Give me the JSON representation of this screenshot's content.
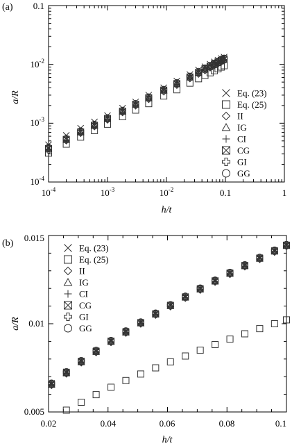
{
  "chart_data": [
    {
      "type": "scatter",
      "panel_label": "(a)",
      "xlabel": "h/t",
      "ylabel": "a/R",
      "xscale": "log",
      "yscale": "log",
      "xlim": [
        0.0001,
        1
      ],
      "ylim": [
        0.0001,
        0.1
      ],
      "x_ticks": [
        "10",
        "10",
        "10",
        "0.1",
        "1"
      ],
      "x_tick_exps": [
        "-4",
        "-3",
        "-2",
        "",
        ""
      ],
      "y_ticks": [
        "10",
        "10",
        "10",
        "0.1"
      ],
      "y_tick_exps": [
        "-4",
        "-3",
        "-2",
        ""
      ],
      "legend_position": "lower-right",
      "series": [
        {
          "name": "Eq. (23)",
          "marker": "x",
          "x": [
            0.0001,
            0.0002,
            0.00035,
            0.0006,
            0.001,
            0.0018,
            0.003,
            0.005,
            0.009,
            0.015,
            0.025,
            0.035,
            0.045,
            0.055,
            0.065,
            0.075,
            0.085,
            0.095
          ],
          "y": [
            0.00043,
            0.00062,
            0.00082,
            0.00105,
            0.00135,
            0.0018,
            0.0023,
            0.003,
            0.004,
            0.0052,
            0.0067,
            0.008,
            0.0091,
            0.0101,
            0.011,
            0.0118,
            0.0126,
            0.0133
          ]
        },
        {
          "name": "Eq. (25)",
          "marker": "square",
          "x": [
            0.0001,
            0.0002,
            0.00035,
            0.0006,
            0.001,
            0.0018,
            0.003,
            0.005,
            0.009,
            0.015,
            0.025,
            0.035,
            0.045,
            0.055,
            0.065,
            0.075,
            0.085,
            0.095
          ],
          "y": [
            0.00031,
            0.00044,
            0.00058,
            0.00075,
            0.00096,
            0.00129,
            0.00167,
            0.00215,
            0.0029,
            0.0037,
            0.0048,
            0.0057,
            0.0065,
            0.0072,
            0.0078,
            0.0084,
            0.009,
            0.0095
          ]
        },
        {
          "name": "II",
          "marker": "diamond",
          "x": [
            0.0001,
            0.0002,
            0.00035,
            0.0006,
            0.001,
            0.0018,
            0.003,
            0.005,
            0.009,
            0.015,
            0.025,
            0.035,
            0.045,
            0.055,
            0.065,
            0.075,
            0.085,
            0.095
          ],
          "y": [
            0.00034,
            0.0005,
            0.00067,
            0.00087,
            0.00113,
            0.00151,
            0.00196,
            0.00253,
            0.0034,
            0.0044,
            0.0057,
            0.0068,
            0.0078,
            0.0087,
            0.0095,
            0.0102,
            0.0109,
            0.0115
          ]
        },
        {
          "name": "IG",
          "marker": "triangle",
          "x": [
            0.0001,
            0.0002,
            0.00035,
            0.0006,
            0.001,
            0.0018,
            0.003,
            0.005,
            0.009,
            0.015,
            0.025,
            0.035,
            0.045,
            0.055,
            0.065,
            0.075,
            0.085,
            0.095
          ],
          "y": [
            0.00036,
            0.00052,
            0.0007,
            0.00091,
            0.00118,
            0.00158,
            0.00205,
            0.00266,
            0.00358,
            0.0046,
            0.006,
            0.0072,
            0.0082,
            0.0091,
            0.01,
            0.0107,
            0.0115,
            0.0122
          ]
        },
        {
          "name": "CI",
          "marker": "plus",
          "x": [
            0.0001,
            0.0002,
            0.00035,
            0.0006,
            0.001,
            0.0018,
            0.003,
            0.005,
            0.009,
            0.015,
            0.025,
            0.035,
            0.045,
            0.055,
            0.065,
            0.075,
            0.085,
            0.095
          ],
          "y": [
            0.00035,
            0.00051,
            0.00068,
            0.00089,
            0.00115,
            0.00154,
            0.002,
            0.0026,
            0.0035,
            0.0045,
            0.0058,
            0.007,
            0.008,
            0.0089,
            0.0097,
            0.0105,
            0.0112,
            0.0118
          ]
        },
        {
          "name": "CG",
          "marker": "boxed-x",
          "x": [
            0.0001,
            0.0002,
            0.00035,
            0.0006,
            0.001,
            0.0018,
            0.003,
            0.005,
            0.009,
            0.015,
            0.025,
            0.035,
            0.045,
            0.055,
            0.065,
            0.075,
            0.085,
            0.095
          ],
          "y": [
            0.00037,
            0.00053,
            0.00071,
            0.00092,
            0.0012,
            0.0016,
            0.0021,
            0.0027,
            0.00365,
            0.0047,
            0.0061,
            0.0073,
            0.0084,
            0.0093,
            0.0102,
            0.011,
            0.0117,
            0.0124
          ]
        },
        {
          "name": "GI",
          "marker": "thick-plus",
          "x": [
            0.0001,
            0.0002,
            0.00035,
            0.0006,
            0.001,
            0.0018,
            0.003,
            0.005,
            0.009,
            0.015,
            0.025,
            0.035,
            0.045,
            0.055,
            0.065,
            0.075,
            0.085,
            0.095
          ],
          "y": [
            0.00038,
            0.00054,
            0.00072,
            0.00094,
            0.00122,
            0.00163,
            0.00212,
            0.00274,
            0.0037,
            0.0048,
            0.0062,
            0.0074,
            0.0085,
            0.0094,
            0.0103,
            0.0111,
            0.0119,
            0.0126
          ]
        },
        {
          "name": "GG",
          "marker": "circle",
          "x": [
            0.0001,
            0.0002,
            0.00035,
            0.0006,
            0.001,
            0.0018,
            0.003,
            0.005,
            0.009,
            0.015,
            0.025,
            0.035,
            0.045,
            0.055,
            0.065,
            0.075,
            0.085,
            0.095
          ],
          "y": [
            0.00039,
            0.00055,
            0.00074,
            0.00096,
            0.00124,
            0.00166,
            0.00216,
            0.0028,
            0.00376,
            0.0049,
            0.0063,
            0.0076,
            0.0087,
            0.0096,
            0.0105,
            0.0113,
            0.0121,
            0.0128
          ]
        }
      ]
    },
    {
      "type": "scatter",
      "panel_label": "(b)",
      "xlabel": "h/t",
      "ylabel": "a/R",
      "xscale": "linear",
      "yscale": "linear",
      "xlim": [
        0.02,
        0.1
      ],
      "ylim": [
        0.005,
        0.015
      ],
      "x_ticks": [
        "0.02",
        "0.04",
        "0.06",
        "0.08",
        "0.1"
      ],
      "y_ticks": [
        "0.005",
        "0.01",
        "0.015"
      ],
      "legend_position": "top-left",
      "series": [
        {
          "name": "Eq. (23)",
          "marker": "x",
          "x": [
            0.021,
            0.026,
            0.031,
            0.036,
            0.041,
            0.046,
            0.051,
            0.056,
            0.061,
            0.066,
            0.071,
            0.076,
            0.081,
            0.086,
            0.091,
            0.096,
            0.1
          ],
          "y": [
            0.00662,
            0.00727,
            0.00789,
            0.00847,
            0.00903,
            0.00957,
            0.01008,
            0.01058,
            0.01106,
            0.01154,
            0.012,
            0.01245,
            0.01289,
            0.01332,
            0.01374,
            0.01415,
            0.01447
          ]
        },
        {
          "name": "Eq. (25)",
          "marker": "square",
          "x": [
            0.021,
            0.026,
            0.031,
            0.036,
            0.041,
            0.046,
            0.051,
            0.056,
            0.061,
            0.066,
            0.071,
            0.076,
            0.081,
            0.086,
            0.091,
            0.096,
            0.1
          ],
          "y": [
            0.0047,
            0.0051,
            0.00555,
            0.00598,
            0.0064,
            0.00678,
            0.00715,
            0.0075,
            0.00784,
            0.00817,
            0.0085,
            0.00882,
            0.00913,
            0.00943,
            0.00972,
            0.01,
            0.01022
          ]
        },
        {
          "name": "II",
          "marker": "diamond",
          "x": [
            0.021,
            0.026,
            0.031,
            0.036,
            0.041,
            0.046,
            0.051,
            0.056,
            0.061,
            0.066,
            0.071,
            0.076,
            0.081,
            0.086,
            0.091,
            0.096,
            0.1
          ],
          "y": [
            0.0065,
            0.00715,
            0.00778,
            0.00836,
            0.00893,
            0.00946,
            0.00998,
            0.01048,
            0.01096,
            0.01144,
            0.0119,
            0.01235,
            0.01279,
            0.01322,
            0.01364,
            0.01405,
            0.01437
          ]
        },
        {
          "name": "IG",
          "marker": "triangle",
          "x": [
            0.021,
            0.026,
            0.031,
            0.036,
            0.041,
            0.046,
            0.051,
            0.056,
            0.061,
            0.066,
            0.071,
            0.076,
            0.081,
            0.086,
            0.091,
            0.096,
            0.1
          ],
          "y": [
            0.00655,
            0.0072,
            0.00783,
            0.00841,
            0.00898,
            0.00951,
            0.01003,
            0.01053,
            0.01101,
            0.01149,
            0.01195,
            0.0124,
            0.01284,
            0.01327,
            0.01369,
            0.0141,
            0.01442
          ]
        },
        {
          "name": "CI",
          "marker": "plus",
          "x": [
            0.021,
            0.026,
            0.031,
            0.036,
            0.041,
            0.046,
            0.051,
            0.056,
            0.061,
            0.066,
            0.071,
            0.076,
            0.081,
            0.086,
            0.091,
            0.096,
            0.1
          ],
          "y": [
            0.00652,
            0.00717,
            0.0078,
            0.00838,
            0.00895,
            0.00948,
            0.01,
            0.0105,
            0.01098,
            0.01146,
            0.01192,
            0.01237,
            0.01281,
            0.01324,
            0.01366,
            0.01407,
            0.01439
          ]
        },
        {
          "name": "CG",
          "marker": "boxed-x",
          "x": [
            0.021,
            0.026,
            0.031,
            0.036,
            0.041,
            0.046,
            0.051,
            0.056,
            0.061,
            0.066,
            0.071,
            0.076,
            0.081,
            0.086,
            0.091,
            0.096,
            0.1
          ],
          "y": [
            0.00657,
            0.00722,
            0.00785,
            0.00843,
            0.009,
            0.00953,
            0.01005,
            0.01055,
            0.01103,
            0.01151,
            0.01197,
            0.01242,
            0.01286,
            0.01329,
            0.01371,
            0.01412,
            0.01444
          ]
        },
        {
          "name": "GI",
          "marker": "thick-plus",
          "x": [
            0.021,
            0.026,
            0.031,
            0.036,
            0.041,
            0.046,
            0.051,
            0.056,
            0.061,
            0.066,
            0.071,
            0.076,
            0.081,
            0.086,
            0.091,
            0.096,
            0.1
          ],
          "y": [
            0.0066,
            0.00725,
            0.00788,
            0.00846,
            0.00902,
            0.00956,
            0.01007,
            0.01057,
            0.01105,
            0.01153,
            0.01199,
            0.01244,
            0.01288,
            0.01331,
            0.01373,
            0.01414,
            0.01446
          ]
        },
        {
          "name": "GG",
          "marker": "circle",
          "x": [
            0.021,
            0.026,
            0.031,
            0.036,
            0.041,
            0.046,
            0.051,
            0.056,
            0.061,
            0.066,
            0.071,
            0.076,
            0.081,
            0.086,
            0.091,
            0.096,
            0.1
          ],
          "y": [
            0.00664,
            0.00729,
            0.00792,
            0.0085,
            0.00906,
            0.0096,
            0.01011,
            0.01061,
            0.01109,
            0.01157,
            0.01203,
            0.01248,
            0.01292,
            0.01335,
            0.01377,
            0.01418,
            0.0145
          ]
        }
      ]
    }
  ]
}
